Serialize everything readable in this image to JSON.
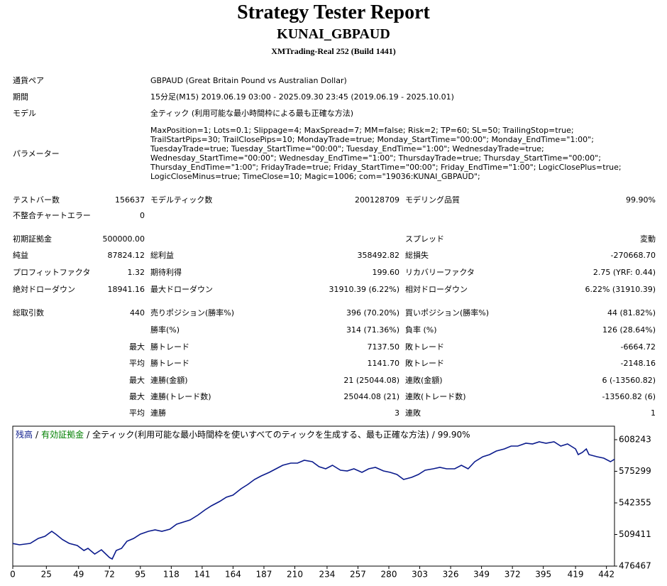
{
  "header": {
    "title": "Strategy Tester Report",
    "subtitle": "KUNAI_GBPAUD",
    "build": "XMTrading-Real 252 (Build 1441)"
  },
  "settings": [
    {
      "label": "通貨ペア",
      "value": "GBPAUD (Great Britain Pound vs Australian Dollar)"
    },
    {
      "label": "期間",
      "value": "15分足(M15) 2019.06.19 03:00 - 2025.09.30 23:45 (2019.06.19 - 2025.10.01)"
    },
    {
      "label": "モデル",
      "value": "全ティック (利用可能な最小時間枠による最も正確な方法)"
    },
    {
      "label": "パラメーター",
      "value": "MaxPosition=1; Lots=0.1; Slippage=4; MaxSpread=7; MM=false; Risk=2; TP=60; SL=50; TrailingStop=true; TrailStartPips=30; TrailClosePips=10; MondayTrade=true; Monday_StartTime=\"00:00\"; Monday_EndTime=\"1:00\"; TuesdayTrade=true; Tuesday_StartTime=\"00:00\"; Tuesday_EndTime=\"1:00\"; WednesdayTrade=true; Wednesday_StartTime=\"00:00\"; Wednesday_EndTime=\"1:00\"; ThursdayTrade=true; Thursday_StartTime=\"00:00\"; Thursday_EndTime=\"1:00\"; FridayTrade=true; Friday_StartTime=\"00:00\"; Friday_EndTime=\"1:00\"; LogicClosePlus=true; LogicCloseMinus=true; TimeClose=10; Magic=1006; com=\"19036:KUNAI_GBPAUD\";"
    }
  ],
  "stats": [
    {
      "c1": {
        "label": "テストバー数",
        "value": "156637"
      },
      "c2": {
        "label": "モデルティック数",
        "value": "200128709"
      },
      "c3": {
        "label": "モデリング品質",
        "value": "99.90%"
      }
    },
    {
      "c1": {
        "label": "不整合チャートエラー",
        "value": "0"
      }
    },
    {
      "c1": {
        "label": "初期証拠金",
        "value": "500000.00"
      },
      "c3": {
        "label": "スプレッド",
        "value": "変動"
      }
    },
    {
      "c1": {
        "label": "純益",
        "value": "87824.12"
      },
      "c2": {
        "label": "総利益",
        "value": "358492.82"
      },
      "c3": {
        "label": "総損失",
        "value": "-270668.70"
      }
    },
    {
      "c1": {
        "label": "プロフィットファクタ",
        "value": "1.32"
      },
      "c2": {
        "label": "期待利得",
        "value": "199.60"
      },
      "c3": {
        "label": "リカバリーファクタ",
        "value": "2.75 (YRF: 0.44)"
      }
    },
    {
      "c1": {
        "label": "絶対ドローダウン",
        "value": "18941.16"
      },
      "c2": {
        "label": "最大ドローダウン",
        "value": "31910.39 (6.22%)"
      },
      "c3": {
        "label": "相対ドローダウン",
        "value": "6.22% (31910.39)"
      }
    },
    {
      "c1": {
        "label": "総取引数",
        "value": "440"
      },
      "c2": {
        "label": "売りポジション(勝率%)",
        "value": "396 (70.20%)"
      },
      "c3": {
        "label": "買いポジション(勝率%)",
        "value": "44 (81.82%)"
      }
    },
    {
      "c2": {
        "label": "勝率(%)",
        "value": "314 (71.36%)"
      },
      "c3": {
        "label": "負率 (%)",
        "value": "126 (28.64%)"
      }
    },
    {
      "c1": {
        "value": "最大"
      },
      "c2": {
        "label": "勝トレード",
        "value": "7137.50"
      },
      "c3": {
        "label": "敗トレード",
        "value": "-6664.72"
      }
    },
    {
      "c1": {
        "value": "平均"
      },
      "c2": {
        "label": "勝トレード",
        "value": "1141.70"
      },
      "c3": {
        "label": "敗トレード",
        "value": "-2148.16"
      }
    },
    {
      "c1": {
        "value": "最大"
      },
      "c2": {
        "label": "連勝(金額)",
        "value": "21 (25044.08)"
      },
      "c3": {
        "label": "連敗(金額)",
        "value": "6 (-13560.82)"
      }
    },
    {
      "c1": {
        "value": "最大"
      },
      "c2": {
        "label": "連勝(トレード数)",
        "value": "25044.08 (21)"
      },
      "c3": {
        "label": "連敗(トレード数)",
        "value": "-13560.82 (6)"
      }
    },
    {
      "c1": {
        "value": "平均"
      },
      "c2": {
        "label": "連勝",
        "value": "3"
      },
      "c3": {
        "label": "連敗",
        "value": "1"
      }
    }
  ],
  "chart_data": {
    "type": "line",
    "separator": "/",
    "equity_label": "有効証拠金",
    "equity_color": "#008000",
    "note": "全ティック(利用可能な最小時間枠を使いすべてのティックを生成する、最も正確な方法)",
    "quality": "99.90%",
    "x": [
      0,
      5,
      13,
      19,
      24,
      29,
      32,
      37,
      42,
      48,
      53,
      56,
      61,
      66,
      72,
      74,
      77,
      81,
      85,
      90,
      95,
      101,
      106,
      111,
      117,
      122,
      127,
      132,
      138,
      143,
      148,
      154,
      159,
      164,
      170,
      175,
      180,
      185,
      191,
      196,
      201,
      207,
      212,
      217,
      223,
      228,
      233,
      238,
      244,
      249,
      254,
      260,
      265,
      270,
      276,
      281,
      286,
      291,
      297,
      302,
      307,
      313,
      318,
      323,
      329,
      334,
      339,
      344,
      350,
      355,
      360,
      366,
      371,
      376,
      382,
      387,
      392,
      397,
      403,
      408,
      413,
      419,
      421,
      424,
      427,
      429,
      435,
      440,
      445,
      448
    ],
    "series": [
      {
        "name": "残高",
        "color": "#0a1a8c",
        "values": [
          500000,
          498678,
          500159,
          505341,
          507562,
          512743,
          509782,
          504160,
          500159,
          497938,
          492757,
          494978,
          489055,
          493497,
          485354,
          483873,
          492757,
          494978,
          502380,
          505341,
          509782,
          512743,
          514224,
          512743,
          514964,
          520146,
          522367,
          524588,
          529770,
          534952,
          539393,
          543835,
          548277,
          550498,
          557161,
          561602,
          566784,
          570486,
          574187,
          577889,
          581591,
          583812,
          583812,
          586773,
          585293,
          580111,
          577889,
          581591,
          576409,
          575669,
          577889,
          574187,
          577889,
          579370,
          575669,
          574187,
          571968,
          566784,
          569005,
          571968,
          576409,
          577889,
          579370,
          577889,
          577889,
          581591,
          577889,
          585293,
          590476,
          592697,
          596398,
          598619,
          601580,
          601580,
          604542,
          603801,
          606022,
          604542,
          606022,
          601580,
          603801,
          598619,
          592697,
          594917,
          598619,
          592697,
          590476,
          588995,
          585293,
          587824
        ]
      }
    ],
    "xlim": [
      0,
      448
    ],
    "ylim": [
      476467,
      622300
    ],
    "xticks": [
      0,
      25,
      49,
      72,
      95,
      118,
      141,
      164,
      187,
      210,
      234,
      257,
      280,
      303,
      326,
      349,
      372,
      395,
      419,
      442
    ],
    "yticks": [
      476467,
      509411,
      542355,
      575299,
      608243
    ],
    "grid": false
  }
}
